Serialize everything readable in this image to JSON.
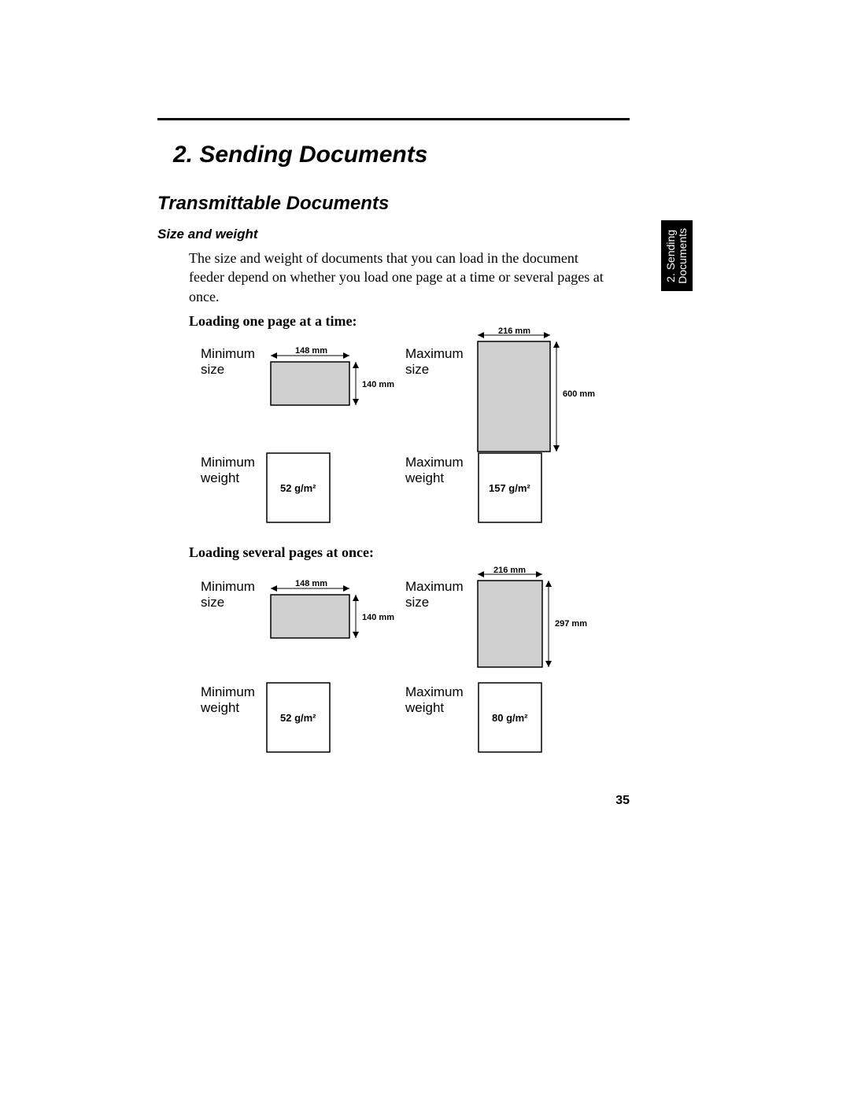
{
  "chapter_title": "2.  Sending Documents",
  "section_title": "Transmittable Documents",
  "subhead": "Size and weight",
  "body_text": "The size and weight of documents that you can load in the document feeder depend on whether you load one page at a time or several pages at once.",
  "tab_text": "2. Sending\nDocuments",
  "page_number": "35",
  "groups": {
    "one_page": {
      "heading": "Loading one page at a time:",
      "min_size": {
        "label": "Minimum\nsize",
        "width_mm": "148 mm",
        "height_mm": "140 mm"
      },
      "max_size": {
        "label": "Maximum\nsize",
        "width_mm": "216 mm",
        "height_mm": "600 mm"
      },
      "min_weight": {
        "label": "Minimum\nweight",
        "value": "52 g/m²"
      },
      "max_weight": {
        "label": "Maximum\nweight",
        "value": "157 g/m²"
      }
    },
    "several": {
      "heading": "Loading several pages at once:",
      "min_size": {
        "label": "Minimum\nsize",
        "width_mm": "148 mm",
        "height_mm": "140 mm"
      },
      "max_size": {
        "label": "Maximum\nsize",
        "width_mm": "216 mm",
        "height_mm": "297 mm"
      },
      "min_weight": {
        "label": "Minimum\nweight",
        "value": "52 g/m²"
      },
      "max_weight": {
        "label": "Maximum\nweight",
        "value": "80 g/m²"
      }
    }
  },
  "style": {
    "fill_gray": "#cfcfcf",
    "stroke": "#000000",
    "background": "#ffffff"
  }
}
